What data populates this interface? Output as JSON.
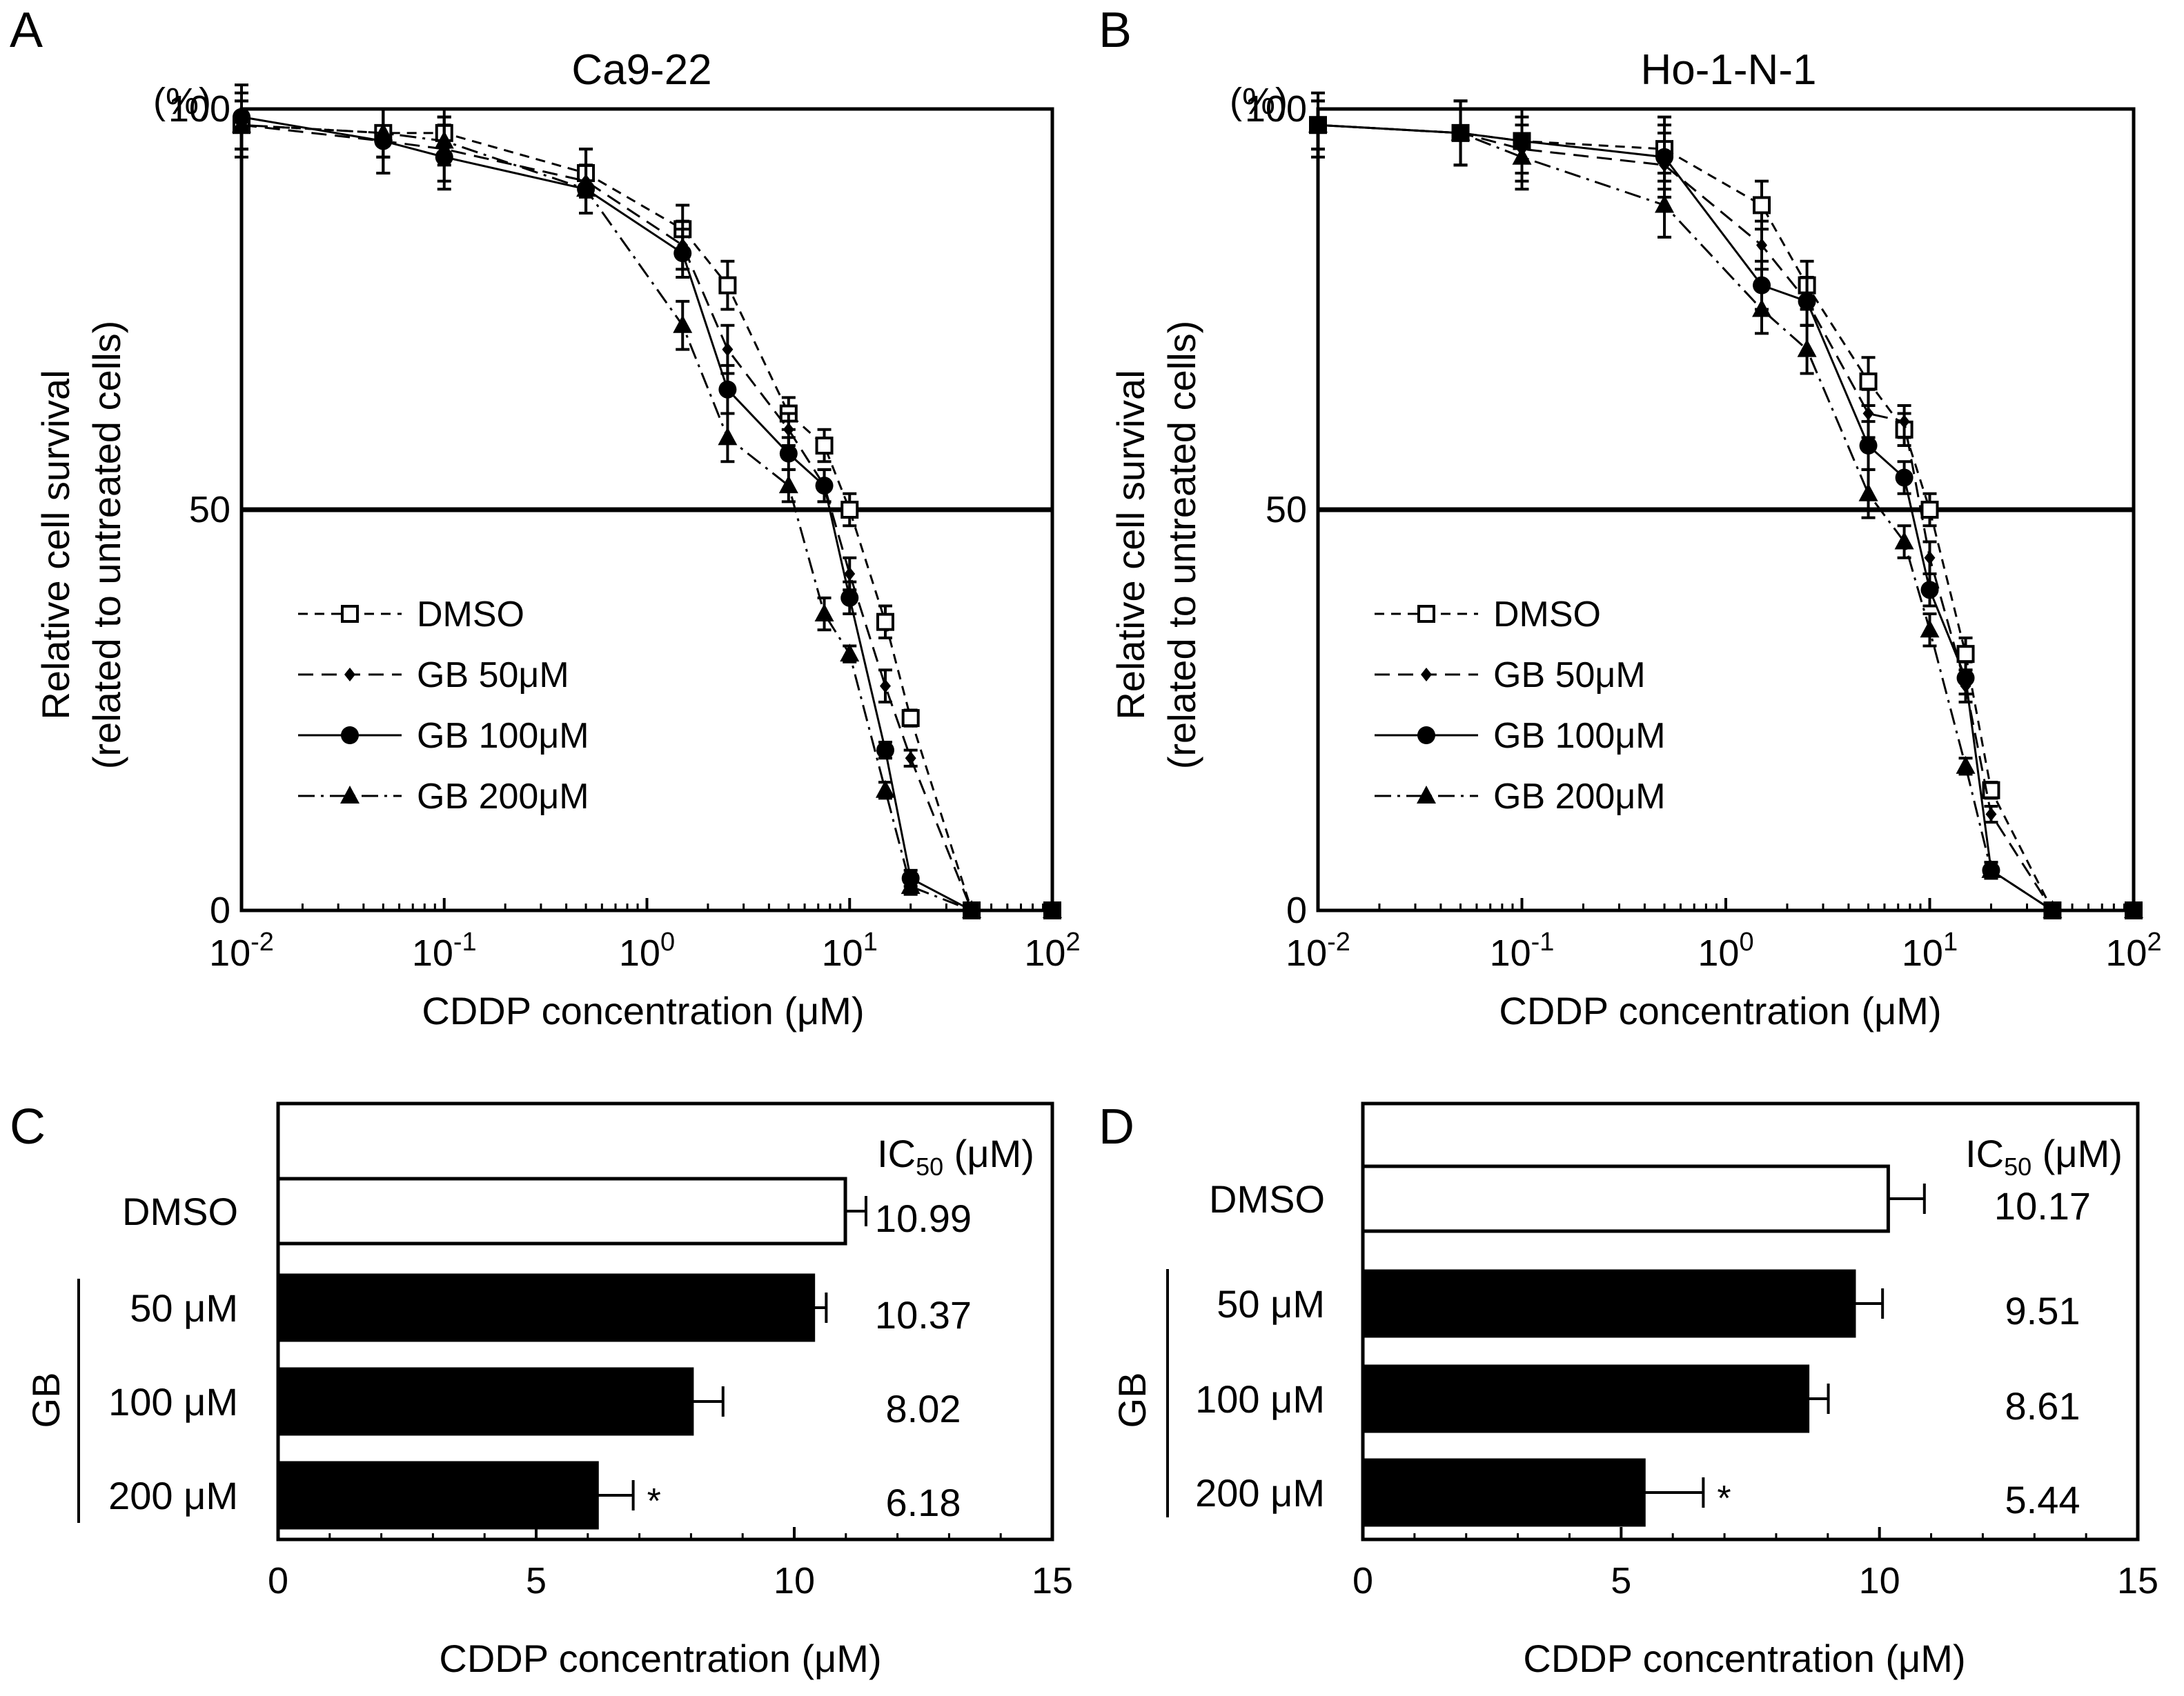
{
  "figure": {
    "panels": {
      "a": "A",
      "b": "B",
      "c": "C",
      "d": "D"
    }
  },
  "chart_data": [
    {
      "id": "A",
      "type": "line",
      "title": "Ca9-22",
      "xlabel": "CDDP concentration (μM)",
      "ylabel_line1": "Relative cell survival",
      "ylabel_line2": "(related to untreated cells)",
      "y_unit": "(%)",
      "x_scale": "log",
      "xlim": [
        0.01,
        100
      ],
      "ylim": [
        0,
        100
      ],
      "x_ticks": [
        {
          "base": "10",
          "exp": "-2"
        },
        {
          "base": "10",
          "exp": "-1"
        },
        {
          "base": "10",
          "exp": "0"
        },
        {
          "base": "10",
          "exp": "1"
        },
        {
          "base": "10",
          "exp": "2"
        }
      ],
      "y_ticks": [
        "0",
        "50",
        "100"
      ],
      "reference_line": 50,
      "x": [
        0.01,
        0.05,
        0.1,
        0.5,
        1.5,
        2.5,
        5,
        7.5,
        10,
        15,
        20,
        40,
        100
      ],
      "series": [
        {
          "name": "DMSO",
          "marker": "open-square",
          "dash": "dashed",
          "values": [
            98,
            97,
            97,
            92,
            85,
            78,
            62,
            58,
            50,
            36,
            24,
            0,
            0
          ],
          "errors": [
            3,
            3,
            3,
            3,
            3,
            3,
            2,
            2,
            2,
            2,
            1,
            0,
            0
          ]
        },
        {
          "name": "GB 50μM",
          "marker": "diamond",
          "dash": "longdash",
          "values": [
            98,
            96,
            95,
            91,
            83,
            70,
            60,
            53,
            42,
            28,
            19,
            0,
            0
          ],
          "errors": [
            4,
            4,
            4,
            4,
            3,
            3,
            2,
            2,
            2,
            2,
            1,
            0,
            0
          ]
        },
        {
          "name": "GB 100μM",
          "marker": "filled-circle",
          "dash": "solid",
          "values": [
            99,
            96,
            94,
            90,
            82,
            65,
            57,
            53,
            39,
            20,
            4,
            0,
            0
          ],
          "errors": [
            4,
            4,
            4,
            3,
            3,
            3,
            2,
            2,
            2,
            1,
            1,
            0,
            0
          ]
        },
        {
          "name": "GB 200μM",
          "marker": "filled-triangle",
          "dash": "dashdot",
          "values": [
            98,
            97,
            96,
            90,
            73,
            59,
            53,
            37,
            32,
            15,
            3,
            0,
            0
          ],
          "errors": [
            3,
            3,
            3,
            3,
            3,
            3,
            2,
            2,
            1,
            1,
            1,
            0,
            0
          ]
        }
      ]
    },
    {
      "id": "B",
      "type": "line",
      "title": "Ho-1-N-1",
      "xlabel": "CDDP concentration (μM)",
      "ylabel_line1": "Relative cell survival",
      "ylabel_line2": "(related to untreated cells)",
      "y_unit": "(%)",
      "x_scale": "log",
      "xlim": [
        0.01,
        100
      ],
      "ylim": [
        0,
        100
      ],
      "x_ticks": [
        {
          "base": "10",
          "exp": "-2"
        },
        {
          "base": "10",
          "exp": "-1"
        },
        {
          "base": "10",
          "exp": "0"
        },
        {
          "base": "10",
          "exp": "1"
        },
        {
          "base": "10",
          "exp": "2"
        }
      ],
      "y_ticks": [
        "0",
        "50",
        "100"
      ],
      "reference_line": 50,
      "x": [
        0.01,
        0.05,
        0.1,
        0.5,
        1.5,
        2.5,
        5,
        7.5,
        10,
        15,
        20,
        40,
        100
      ],
      "series": [
        {
          "name": "DMSO",
          "marker": "open-square",
          "dash": "dashed",
          "values": [
            98,
            97,
            96,
            95,
            88,
            78,
            66,
            60,
            50,
            32,
            15,
            0,
            0
          ],
          "errors": [
            3,
            4,
            4,
            4,
            3,
            3,
            3,
            2,
            2,
            2,
            1,
            0,
            0
          ]
        },
        {
          "name": "GB 50μM",
          "marker": "diamond",
          "dash": "longdash",
          "values": [
            98,
            97,
            95,
            93,
            83,
            76,
            62,
            61,
            44,
            28,
            12,
            0,
            0
          ],
          "errors": [
            4,
            4,
            4,
            4,
            3,
            3,
            3,
            2,
            2,
            2,
            1,
            0,
            0
          ]
        },
        {
          "name": "GB 100μM",
          "marker": "filled-circle",
          "dash": "solid",
          "values": [
            98,
            97,
            96,
            94,
            78,
            76,
            58,
            54,
            40,
            29,
            5,
            0,
            0
          ],
          "errors": [
            3,
            4,
            4,
            4,
            3,
            3,
            3,
            2,
            2,
            2,
            1,
            0,
            0
          ]
        },
        {
          "name": "GB 200μM",
          "marker": "filled-triangle",
          "dash": "dashdot",
          "values": [
            98,
            97,
            94,
            88,
            75,
            70,
            52,
            46,
            35,
            18,
            5,
            0,
            0
          ],
          "errors": [
            3,
            4,
            4,
            4,
            3,
            3,
            3,
            2,
            2,
            1,
            1,
            0,
            0
          ]
        }
      ]
    },
    {
      "id": "C",
      "type": "bar",
      "orientation": "horizontal",
      "xlabel": "CDDP concentration (μM)",
      "xlim": [
        0,
        15
      ],
      "x_ticks": [
        "0",
        "5",
        "10",
        "15"
      ],
      "group_label": "GB",
      "value_header_pre": "IC",
      "value_header_sub": "50",
      "value_header_post": " (μM)",
      "categories": [
        "DMSO",
        "50 μM",
        "100 μM",
        "200 μM"
      ],
      "values": [
        10.99,
        10.37,
        8.02,
        6.18
      ],
      "value_labels": [
        "10.99",
        "10.37",
        "8.02",
        "6.18"
      ],
      "errors": [
        0.4,
        0.25,
        0.6,
        0.7
      ],
      "fills": [
        "open",
        "filled",
        "filled",
        "filled"
      ],
      "significance": [
        "",
        "",
        "",
        "*"
      ]
    },
    {
      "id": "D",
      "type": "bar",
      "orientation": "horizontal",
      "xlabel": "CDDP concentration (μM)",
      "xlim": [
        0,
        15
      ],
      "x_ticks": [
        "0",
        "5",
        "10",
        "15"
      ],
      "group_label": "GB",
      "value_header_pre": "IC",
      "value_header_sub": "50",
      "value_header_post": " (μM)",
      "categories": [
        "DMSO",
        "50 μM",
        "100 μM",
        "200 μM"
      ],
      "values": [
        10.17,
        9.51,
        8.61,
        5.44
      ],
      "value_labels": [
        "10.17",
        "9.51",
        "8.61",
        "5.44"
      ],
      "errors": [
        0.7,
        0.55,
        0.4,
        1.15
      ],
      "fills": [
        "open",
        "filled",
        "filled",
        "filled"
      ],
      "significance": [
        "",
        "",
        "",
        "*"
      ]
    }
  ]
}
